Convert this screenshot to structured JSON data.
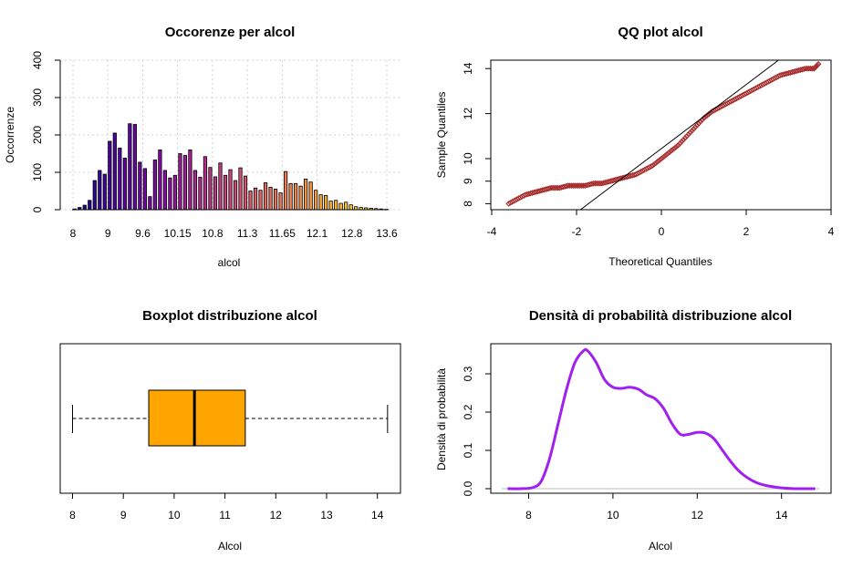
{
  "chart_data": [
    {
      "type": "bar",
      "title": "Occorenze per alcol",
      "xlabel": "alcol",
      "ylabel": "Occorrenze",
      "ylim": [
        0,
        400
      ],
      "yticks": [
        "0",
        "100",
        "200",
        "300",
        "400"
      ],
      "xtick_labels": [
        "8",
        "9",
        "9.6",
        "10.15",
        "10.8",
        "11.3",
        "11.65",
        "12.1",
        "12.8",
        "13.6"
      ],
      "grid": true,
      "palette": "plasma",
      "categories": [
        "8",
        "8.1",
        "8.2",
        "8.3",
        "8.4",
        "8.5",
        "8.6",
        "8.7",
        "8.8",
        "8.9",
        "9",
        "9.1",
        "9.2",
        "9.3",
        "9.4",
        "9.5",
        "9.6",
        "9.7",
        "9.8",
        "9.9",
        "10",
        "10.1",
        "10.15",
        "10.2",
        "10.3",
        "10.4",
        "10.5",
        "10.6",
        "10.7",
        "10.8",
        "10.9",
        "11",
        "11.1",
        "11.2",
        "11.3",
        "11.4",
        "11.5",
        "11.6",
        "11.65",
        "11.7",
        "11.8",
        "11.9",
        "12",
        "12.1",
        "12.2",
        "12.3",
        "12.4",
        "12.5",
        "12.6",
        "12.7",
        "12.8",
        "12.9",
        "13",
        "13.1",
        "13.2",
        "13.3",
        "13.4",
        "13.5",
        "13.6",
        "13.7",
        "13.8",
        "13.9",
        "14"
      ],
      "values": [
        2,
        6,
        12,
        25,
        78,
        105,
        95,
        183,
        205,
        165,
        138,
        230,
        228,
        127,
        110,
        35,
        133,
        160,
        105,
        85,
        92,
        150,
        145,
        160,
        105,
        87,
        142,
        113,
        88,
        125,
        92,
        107,
        78,
        112,
        90,
        50,
        58,
        52,
        72,
        60,
        55,
        45,
        102,
        70,
        70,
        63,
        82,
        74,
        52,
        40,
        38,
        23,
        25,
        17,
        20,
        13,
        8,
        6,
        5,
        4,
        3,
        2,
        1
      ]
    },
    {
      "type": "scatter",
      "title": "QQ plot alcol",
      "xlabel": "Theoretical Quantiles",
      "ylabel": "Sample Quantiles",
      "xlim": [
        -4,
        4
      ],
      "ylim": [
        8,
        14
      ],
      "xticks": [
        "-4",
        "-2",
        "0",
        "2",
        "4"
      ],
      "yticks": [
        "8",
        "9",
        "10",
        "12",
        "14"
      ],
      "point_color": "#A52A2A",
      "line_color": "#000000",
      "points": [
        [
          -3.6,
          8.0
        ],
        [
          -3.4,
          8.2
        ],
        [
          -3.2,
          8.4
        ],
        [
          -3.0,
          8.5
        ],
        [
          -2.8,
          8.6
        ],
        [
          -2.6,
          8.7
        ],
        [
          -2.4,
          8.7
        ],
        [
          -2.2,
          8.8
        ],
        [
          -2.0,
          8.8
        ],
        [
          -1.8,
          8.8
        ],
        [
          -1.6,
          8.9
        ],
        [
          -1.4,
          8.9
        ],
        [
          -1.2,
          9.0
        ],
        [
          -1.0,
          9.1
        ],
        [
          -0.8,
          9.2
        ],
        [
          -0.6,
          9.3
        ],
        [
          -0.4,
          9.5
        ],
        [
          -0.2,
          9.7
        ],
        [
          0.0,
          10.0
        ],
        [
          0.2,
          10.3
        ],
        [
          0.4,
          10.6
        ],
        [
          0.6,
          11.0
        ],
        [
          0.8,
          11.4
        ],
        [
          1.0,
          11.8
        ],
        [
          1.2,
          12.1
        ],
        [
          1.4,
          12.3
        ],
        [
          1.6,
          12.5
        ],
        [
          1.8,
          12.7
        ],
        [
          2.0,
          12.9
        ],
        [
          2.2,
          13.1
        ],
        [
          2.4,
          13.3
        ],
        [
          2.6,
          13.5
        ],
        [
          2.8,
          13.7
        ],
        [
          3.0,
          13.8
        ],
        [
          3.2,
          13.9
        ],
        [
          3.4,
          14.0
        ],
        [
          3.6,
          14.0
        ],
        [
          3.7,
          14.2
        ]
      ],
      "reference_line": [
        [
          -2.0,
          7.6
        ],
        [
          2.85,
          14.5
        ]
      ]
    },
    {
      "type": "boxplot",
      "title": "Boxplot distribuzione alcol",
      "xlabel": "Alcol",
      "xlim": [
        8,
        14
      ],
      "xticks": [
        "8",
        "9",
        "10",
        "11",
        "12",
        "13",
        "14"
      ],
      "whisker_low": 8.0,
      "q1": 9.5,
      "median": 10.4,
      "q3": 11.4,
      "whisker_high": 14.2,
      "fill_color": "#FFA500"
    },
    {
      "type": "line",
      "title": "Densità di probabilità distribuzione alcol",
      "xlabel": "Alcol",
      "ylabel": "Densità di probabilità",
      "ylim": [
        0,
        0.35
      ],
      "xticks": [
        "8",
        "10",
        "12",
        "14"
      ],
      "yticks": [
        "0.0",
        "0.1",
        "0.2",
        "0.3"
      ],
      "line_color": "#A020F0",
      "x": [
        7.5,
        7.8,
        8.1,
        8.3,
        8.5,
        8.7,
        8.9,
        9.1,
        9.3,
        9.4,
        9.6,
        9.8,
        10.0,
        10.2,
        10.4,
        10.6,
        10.8,
        11.0,
        11.2,
        11.4,
        11.6,
        11.8,
        12.0,
        12.2,
        12.4,
        12.6,
        12.8,
        13.0,
        13.2,
        13.4,
        13.6,
        13.8,
        14.0,
        14.3,
        14.8
      ],
      "y": [
        0.0,
        0.0,
        0.003,
        0.02,
        0.08,
        0.17,
        0.26,
        0.33,
        0.36,
        0.36,
        0.33,
        0.285,
        0.265,
        0.262,
        0.265,
        0.26,
        0.245,
        0.235,
        0.21,
        0.17,
        0.142,
        0.142,
        0.147,
        0.145,
        0.13,
        0.1,
        0.07,
        0.045,
        0.028,
        0.016,
        0.009,
        0.005,
        0.002,
        0.0,
        0.0
      ]
    }
  ]
}
